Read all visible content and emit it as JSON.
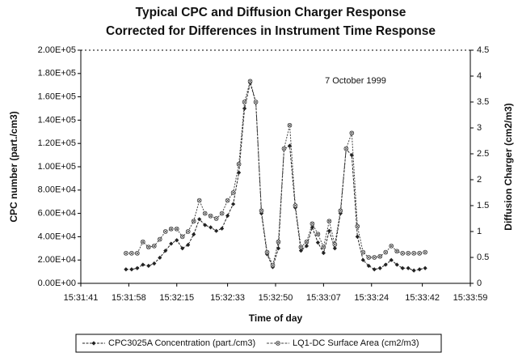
{
  "chart_data": {
    "type": "line",
    "title": "Typical CPC and Diffusion Charger Response",
    "subtitle": "Corrected for Differences in Instrument Time Response",
    "x_label": "Time of day",
    "y_label": "CPC number (part./cm3)",
    "y2_label": "Diffusion Charger (cm2/m3)",
    "annotation": "7 October 1999",
    "x": [
      55917,
      55919,
      55921,
      55923,
      55925,
      55927,
      55929,
      55931,
      55933,
      55935,
      55937,
      55939,
      55941,
      55943,
      55945,
      55947,
      55949,
      55951,
      55953,
      55955,
      55957,
      55959,
      55961,
      55963,
      55965,
      55967,
      55969,
      55971,
      55973,
      55975,
      55977,
      55979,
      55981,
      55983,
      55985,
      55987,
      55989,
      55991,
      55993,
      55995,
      55997,
      55999,
      56001,
      56003,
      56005,
      56007,
      56009,
      56011,
      56013,
      56015,
      56017,
      56019,
      56021,
      56023
    ],
    "series": [
      {
        "name": "CPC3025A Concentration (part./cm3)",
        "color": "#222222",
        "axis": "y",
        "values": [
          12000,
          12000,
          13000,
          16000,
          15000,
          17000,
          22000,
          28000,
          34000,
          37000,
          30000,
          33000,
          42000,
          55000,
          50000,
          48000,
          45000,
          47000,
          58000,
          68000,
          95000,
          150000,
          172000,
          155000,
          60000,
          25000,
          14000,
          30000,
          115000,
          118000,
          65000,
          28000,
          32000,
          48000,
          35000,
          26000,
          45000,
          30000,
          60000,
          115000,
          110000,
          40000,
          20000,
          15000,
          12000,
          13000,
          16000,
          20000,
          16000,
          13000,
          13000,
          11000,
          12000,
          13000
        ]
      },
      {
        "name": "LQ1-DC Surface Area (cm2/m3)",
        "color": "#444444",
        "axis": "y2",
        "values": [
          0.58,
          0.58,
          0.58,
          0.8,
          0.7,
          0.72,
          0.85,
          1.0,
          1.05,
          1.05,
          0.9,
          1.0,
          1.2,
          1.6,
          1.35,
          1.3,
          1.25,
          1.35,
          1.6,
          1.75,
          2.3,
          3.5,
          3.9,
          3.5,
          1.4,
          0.6,
          0.35,
          0.8,
          2.6,
          3.05,
          1.5,
          0.7,
          0.8,
          1.15,
          0.95,
          0.7,
          1.2,
          0.75,
          1.4,
          2.6,
          2.9,
          1.1,
          0.6,
          0.5,
          0.5,
          0.52,
          0.6,
          0.72,
          0.62,
          0.58,
          0.58,
          0.58,
          0.58,
          0.6
        ]
      }
    ],
    "xlim": [
      55901,
      56039
    ],
    "xticks": [
      {
        "value": 55901,
        "label": "15:31:41"
      },
      {
        "value": 55918,
        "label": "15:31:58"
      },
      {
        "value": 55935,
        "label": "15:32:15"
      },
      {
        "value": 55953,
        "label": "15:32:33"
      },
      {
        "value": 55970,
        "label": "15:32:50"
      },
      {
        "value": 55987,
        "label": "15:33:07"
      },
      {
        "value": 56004,
        "label": "15:33:24"
      },
      {
        "value": 56022,
        "label": "15:33:42"
      },
      {
        "value": 56039,
        "label": "15:33:59"
      }
    ],
    "ylim": [
      0,
      200000
    ],
    "yticks": [
      {
        "value": 0,
        "label": "0.00E+00"
      },
      {
        "value": 20000,
        "label": "2.00E+04"
      },
      {
        "value": 40000,
        "label": "4.00E+04"
      },
      {
        "value": 60000,
        "label": "6.00E+04"
      },
      {
        "value": 80000,
        "label": "8.00E+04"
      },
      {
        "value": 100000,
        "label": "1.00E+05"
      },
      {
        "value": 120000,
        "label": "1.20E+05"
      },
      {
        "value": 140000,
        "label": "1.40E+05"
      },
      {
        "value": 160000,
        "label": "1.60E+05"
      },
      {
        "value": 180000,
        "label": "1.80E+05"
      },
      {
        "value": 200000,
        "label": "2.00E+05"
      }
    ],
    "y2lim": [
      0,
      4.5
    ],
    "y2ticks": [
      0,
      0.5,
      1,
      1.5,
      2,
      2.5,
      3,
      3.5,
      4,
      4.5
    ],
    "grid": false,
    "legend": "bottom"
  }
}
